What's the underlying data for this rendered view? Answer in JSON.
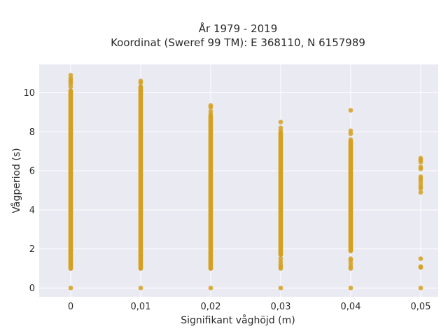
{
  "chart_data": {
    "type": "scatter",
    "title_line1": "År 1979 - 2019",
    "title_line2": "Koordinat (Sweref 99 TM): E 368110, N 6157989",
    "xlabel": "Signifikant våghöjd (m)",
    "ylabel": "Vågperiod (s)",
    "xlim": [
      -0.0045,
      0.0525
    ],
    "ylim": [
      -0.45,
      11.45
    ],
    "grid": true,
    "x_ticks": [
      0,
      0.01,
      0.02,
      0.03,
      0.04,
      0.05
    ],
    "x_tick_labels": [
      "0",
      "0,01",
      "0,02",
      "0,03",
      "0,04",
      "0,05"
    ],
    "y_ticks": [
      0,
      2,
      4,
      6,
      8,
      10
    ],
    "y_tick_labels": [
      "0",
      "2",
      "4",
      "6",
      "8",
      "10"
    ],
    "marker_color": "#D4A020",
    "plot_background": "#EAEAF2",
    "columns": [
      {
        "x": 0,
        "zero_point": true,
        "dense_range": [
          1.0,
          10.1
        ],
        "scatter_points": [
          10.3,
          10.45,
          10.55,
          10.65,
          10.75,
          10.9
        ]
      },
      {
        "x": 0.01,
        "zero_point": true,
        "dense_range": [
          1.0,
          10.3
        ],
        "scatter_points": [
          10.5,
          10.6
        ]
      },
      {
        "x": 0.02,
        "zero_point": true,
        "dense_range": [
          1.0,
          8.8
        ],
        "scatter_points": [
          8.9,
          9.05,
          9.25,
          9.35
        ]
      },
      {
        "x": 0.03,
        "zero_point": true,
        "dense_range": [
          1.7,
          7.9
        ],
        "scatter_points": [
          1.0,
          1.1,
          1.2,
          1.35,
          1.5,
          7.95,
          8.05,
          8.2,
          8.5
        ]
      },
      {
        "x": 0.04,
        "zero_point": true,
        "dense_range": [
          1.9,
          7.5
        ],
        "scatter_points": [
          1.0,
          1.1,
          1.25,
          1.4,
          1.5,
          7.6,
          7.9,
          8.05,
          9.1
        ]
      },
      {
        "x": 0.05,
        "zero_point": true,
        "dense_range": null,
        "scatter_points": [
          1.05,
          1.1,
          1.5,
          4.9,
          5.1,
          5.2,
          5.35,
          5.5,
          5.6,
          5.7,
          6.1,
          6.2,
          6.45,
          6.55,
          6.65
        ]
      }
    ]
  }
}
